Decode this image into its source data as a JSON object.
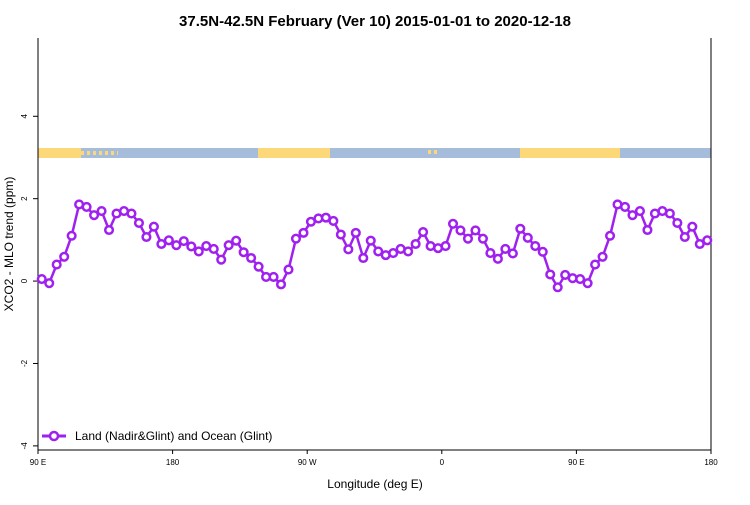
{
  "chart_data": {
    "type": "line",
    "title": "37.5N-42.5N February (Ver 10)   2015-01-01 to 2020-12-18",
    "xlabel": "Longitude (deg E)",
    "ylabel": "XCO2 - MLO trend (ppm)",
    "xlim_labels": [
      "90 E",
      "90 E",
      "180"
    ],
    "xticks": [
      {
        "label": "90 E",
        "lon": 90
      },
      {
        "label": "180",
        "lon": 180
      },
      {
        "label": "90 W",
        "lon": -90
      },
      {
        "label": "0",
        "lon": 0
      },
      {
        "label": "90 E",
        "lon": 90
      },
      {
        "label": "180",
        "lon": 180
      }
    ],
    "ylim": [
      -4.1,
      5.9
    ],
    "yticks": [
      -4,
      -2,
      0,
      2,
      4
    ],
    "grid": false,
    "legend_placement": "bottom-left",
    "series": [
      {
        "name": "Land (Nadir&Glint) and Ocean (Glint)",
        "color": "#a020f0",
        "marker": "open-circle",
        "x": [
          92.5,
          97.5,
          102.5,
          107.5,
          112.5,
          117.5,
          122.5,
          127.5,
          132.5,
          137.5,
          142.5,
          147.5,
          152.5,
          157.5,
          162.5,
          167.5,
          172.5,
          177.5,
          -177.5,
          -172.5,
          -167.5,
          -162.5,
          -157.5,
          -152.5,
          -147.5,
          -142.5,
          -137.5,
          -132.5,
          -127.5,
          -122.5,
          -117.5,
          -112.5,
          -107.5,
          -102.5,
          -97.5,
          -92.5,
          -87.5,
          -82.5,
          -77.5,
          -72.5,
          -67.5,
          -62.5,
          -57.5,
          -52.5,
          -47.5,
          -42.5,
          -37.5,
          -32.5,
          -27.5,
          -22.5,
          -17.5,
          -12.5,
          -7.5,
          -2.5,
          2.5,
          7.5,
          12.5,
          17.5,
          22.5,
          27.5,
          32.5,
          37.5,
          42.5,
          47.5,
          52.5,
          57.5,
          62.5,
          67.5,
          72.5,
          77.5,
          82.5,
          87.5,
          92.5,
          97.5,
          102.5,
          107.5,
          112.5,
          117.5,
          122.5,
          127.5,
          132.5,
          137.5,
          142.5,
          147.5,
          152.5,
          157.5,
          162.5,
          167.5,
          172.5,
          177.5
        ],
        "y": [
          0.05,
          -0.05,
          0.4,
          0.59,
          1.1,
          1.86,
          1.8,
          1.6,
          1.7,
          1.24,
          1.64,
          1.7,
          1.64,
          1.41,
          1.07,
          1.32,
          0.9,
          0.99,
          0.87,
          0.97,
          0.84,
          0.72,
          0.85,
          0.78,
          0.52,
          0.87,
          0.98,
          0.7,
          0.56,
          0.35,
          0.1,
          0.1,
          -0.08,
          0.28,
          1.03,
          1.17,
          1.44,
          1.52,
          1.54,
          1.46,
          1.13,
          0.77,
          1.17,
          0.56,
          0.98,
          0.72,
          0.63,
          0.68,
          0.78,
          0.72,
          0.9,
          1.19,
          0.85,
          0.8,
          0.85,
          1.39,
          1.23,
          1.03,
          1.23,
          1.03,
          0.68,
          0.54,
          0.78,
          0.67,
          1.27,
          1.05,
          0.85,
          0.71,
          0.16,
          -0.15,
          0.15,
          0.07,
          0.05,
          -0.05,
          0.4,
          0.59,
          1.1,
          1.86,
          1.8,
          1.6,
          1.7,
          1.24,
          1.64,
          1.7,
          1.64,
          1.41,
          1.07,
          1.32,
          0.9,
          0.99
        ]
      }
    ],
    "surface_strip": {
      "land_color": "#fdd878",
      "ocean_color": "#a5bcdb"
    }
  }
}
